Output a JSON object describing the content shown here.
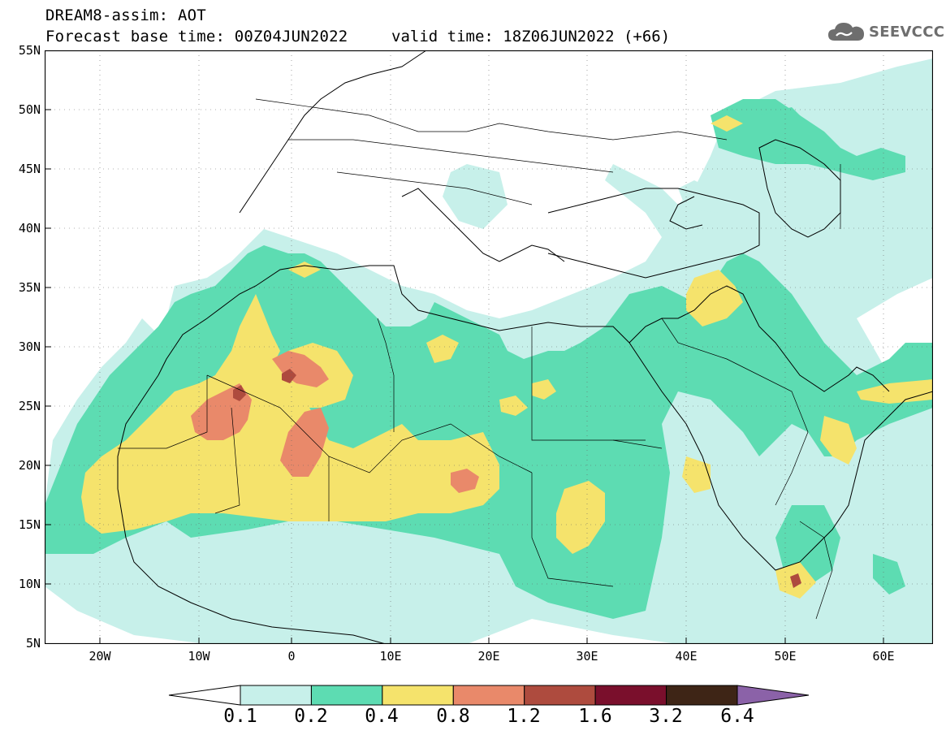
{
  "header": {
    "title_line1": "DREAM8-assim: AOT",
    "title_line2": "Forecast base time: 00Z04JUN2022",
    "valid_time": "valid time: 18Z06JUN2022 (+66)"
  },
  "logo": {
    "text": "SEEVCCC",
    "icon": "cloud-icon"
  },
  "map": {
    "lat_labels": [
      "55N",
      "50N",
      "45N",
      "40N",
      "35N",
      "30N",
      "25N",
      "20N",
      "15N",
      "10N",
      "5N"
    ],
    "lon_labels": [
      "20W",
      "10W",
      "0",
      "10E",
      "20E",
      "30E",
      "40E",
      "50E",
      "60E"
    ],
    "extent": {
      "lon": [
        -25,
        65
      ],
      "lat": [
        5,
        55
      ]
    }
  },
  "colorbar": {
    "labels": [
      "0.1",
      "0.2",
      "0.4",
      "0.8",
      "1.2",
      "1.6",
      "3.2",
      "6.4"
    ],
    "colors": [
      "#ffffff",
      "#c7f0ea",
      "#5ddcb2",
      "#f5e36c",
      "#e9896a",
      "#ae4b3e",
      "#7a0f2c",
      "#3e2516",
      "#8b62a8"
    ]
  }
}
